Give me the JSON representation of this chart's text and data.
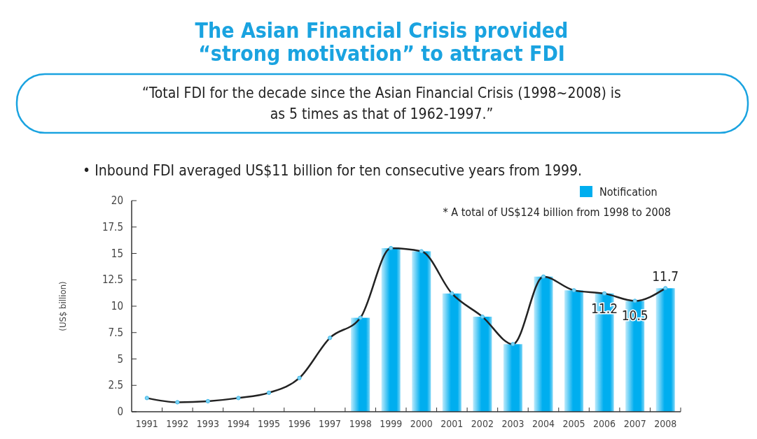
{
  "chart_data": {
    "type": "bar",
    "title": "The Asian Financial Crisis provided “strong motivation” to attract FDI",
    "subtitle": "“Total FDI for the decade since the Asian Financial Crisis (1998~2008) is as 5 times as that of 1962-1997.”",
    "annotations": [
      "• Inbound FDI averaged US$11 billion for ten consecutive years from 1999.",
      "* A total of US$124 billion from 1998 to 2008"
    ],
    "ylabel": "(US$ billion)",
    "categories": [
      "1991",
      "1992",
      "1993",
      "1994",
      "1995",
      "1996",
      "1997",
      "1998",
      "1999",
      "2000",
      "2001",
      "2002",
      "2003",
      "2004",
      "2005",
      "2006",
      "2007",
      "2008"
    ],
    "series": [
      {
        "name": "Notification",
        "color": "#00aeef",
        "values": [
          null,
          null,
          null,
          null,
          null,
          null,
          null,
          8.9,
          15.5,
          15.2,
          11.2,
          9.0,
          6.4,
          12.8,
          11.5,
          11.2,
          10.5,
          11.7
        ]
      },
      {
        "type": "line",
        "color": "#222222",
        "marker": "circle",
        "values": [
          1.3,
          0.9,
          1.0,
          1.3,
          1.8,
          3.2,
          7.0,
          8.9,
          15.5,
          15.2,
          11.2,
          9.0,
          6.4,
          12.8,
          11.5,
          11.2,
          10.5,
          11.7
        ],
        "value_labels": [
          null,
          null,
          null,
          null,
          null,
          null,
          null,
          null,
          null,
          null,
          null,
          null,
          null,
          null,
          null,
          "11.2",
          "10.5",
          "11.7"
        ]
      }
    ],
    "ylim": [
      0,
      20
    ],
    "yticks": [
      0,
      2.5,
      5,
      7.5,
      10,
      12.5,
      15,
      17.5,
      20
    ],
    "legend": "top right"
  }
}
